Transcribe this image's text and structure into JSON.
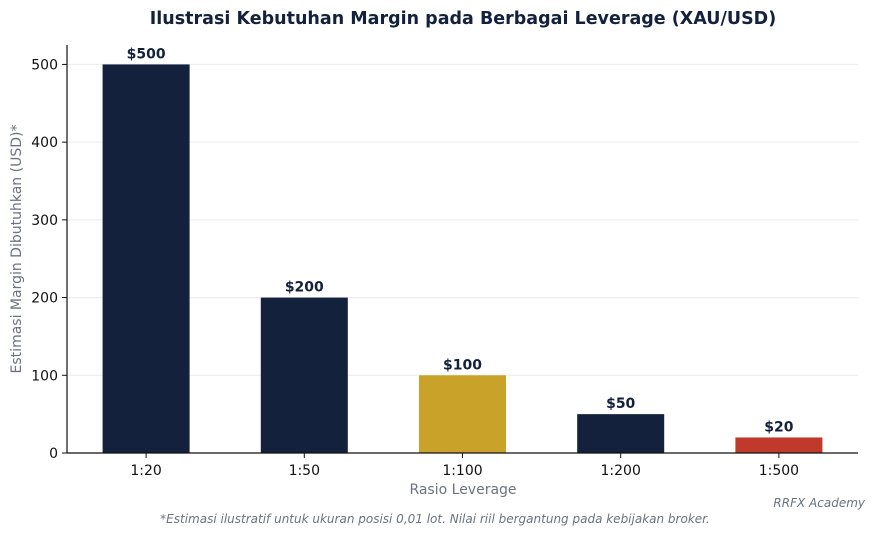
{
  "colors": {
    "navy": "#13213d",
    "gold": "#c9a229",
    "red": "#c0392b",
    "grid": "#ececec",
    "muted": "#6b7280"
  },
  "chart_data": {
    "type": "bar",
    "title": "Ilustrasi Kebutuhan Margin pada Berbagai Leverage (XAU/USD)",
    "xlabel": "Rasio Leverage",
    "ylabel": "Estimasi Margin Dibutuhkan (USD)*",
    "categories": [
      "1:20",
      "1:50",
      "1:100",
      "1:200",
      "1:500"
    ],
    "values": [
      500,
      200,
      100,
      50,
      20
    ],
    "data_labels": [
      "$500",
      "$200",
      "$100",
      "$50",
      "$20"
    ],
    "bar_colors": [
      "#13213d",
      "#13213d",
      "#c9a229",
      "#13213d",
      "#c0392b"
    ],
    "ylim": [
      0,
      525
    ],
    "yticks": [
      0,
      100,
      200,
      300,
      400,
      500
    ],
    "grid": true,
    "legend": "none"
  },
  "footnote": "*Estimasi ilustratif untuk ukuran posisi 0,01 lot. Nilai riil bergantung pada kebijakan broker.",
  "credit": "RRFX Academy"
}
